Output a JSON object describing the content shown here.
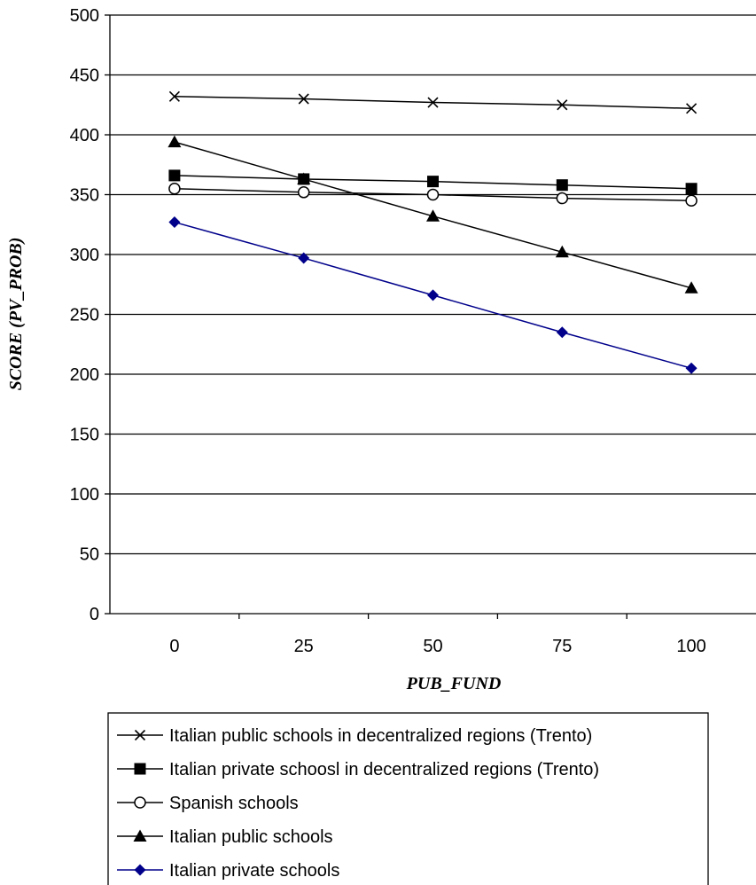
{
  "chart_data": {
    "type": "line",
    "title": "",
    "xlabel": "PUB_FUND",
    "ylabel": "SCORE (PV_PROB)",
    "categories": [
      "0",
      "25",
      "50",
      "75",
      "100"
    ],
    "ylim": [
      0,
      500
    ],
    "yticks": [
      0,
      50,
      100,
      150,
      200,
      250,
      300,
      350,
      400,
      450,
      500
    ],
    "grid": "horizontal",
    "legend_position": "bottom",
    "series": [
      {
        "name": "Italian public schools in decentralized regions (Trento)",
        "marker": "x",
        "color": "#000000",
        "values": [
          432,
          430,
          427,
          425,
          422
        ]
      },
      {
        "name": "Italian private schoosl in decentralized regions (Trento)",
        "marker": "square",
        "color": "#000000",
        "values": [
          366,
          363,
          361,
          358,
          355
        ]
      },
      {
        "name": "Spanish schools",
        "marker": "circle",
        "color": "#000000",
        "values": [
          355,
          352,
          350,
          347,
          345
        ]
      },
      {
        "name": "Italian public schools",
        "marker": "triangle",
        "color": "#000000",
        "values": [
          394,
          363,
          332,
          302,
          272
        ]
      },
      {
        "name": "Italian private schools",
        "marker": "diamond",
        "color": "#00008B",
        "values": [
          327,
          297,
          266,
          235,
          205
        ]
      }
    ]
  }
}
